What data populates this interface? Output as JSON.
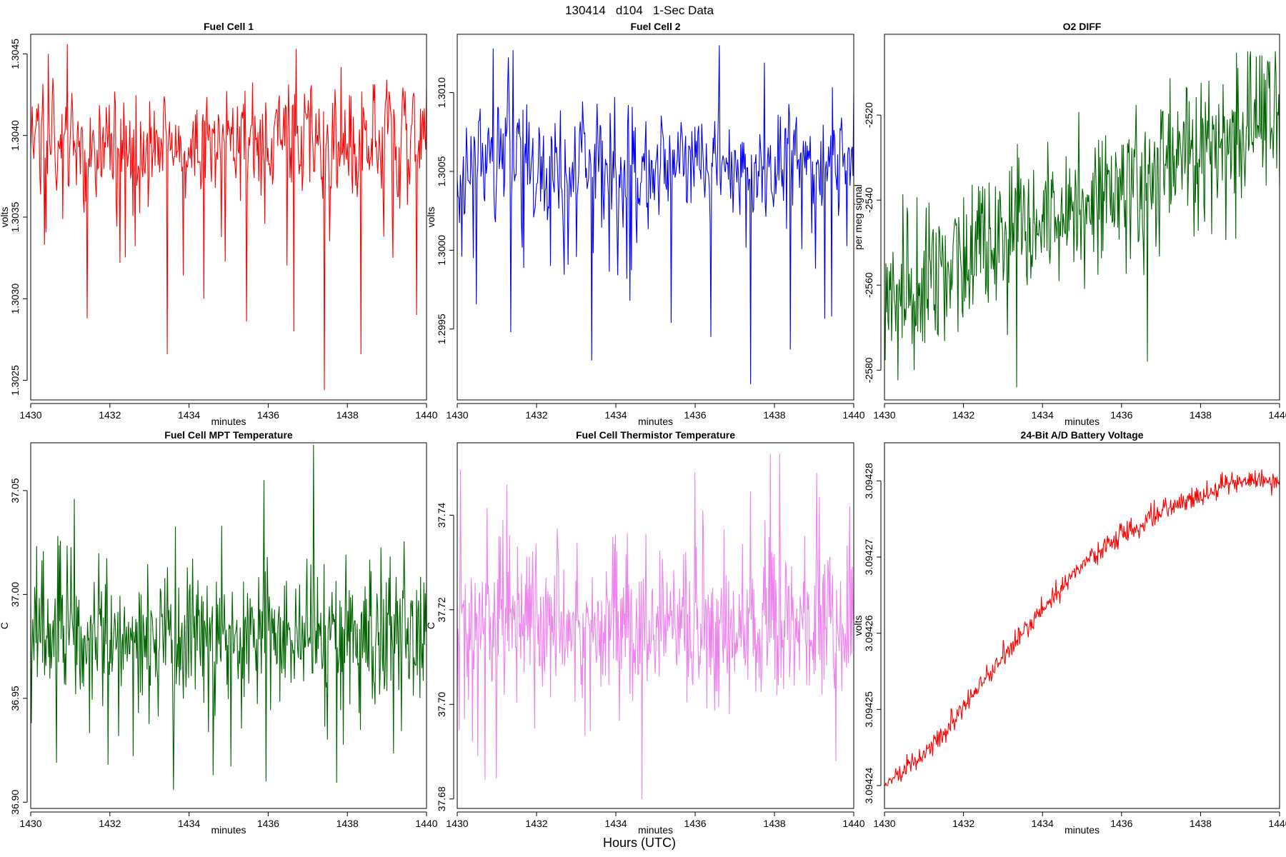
{
  "figure": {
    "title": "130414   d104   1-Sec Data",
    "outer_xlabel": "Hours (UTC)"
  },
  "chart_data": [
    {
      "id": "fc1",
      "type": "line",
      "title": "Fuel Cell 1",
      "xlabel": "minutes",
      "ylabel": "volts",
      "color": "#ff0000",
      "xlim": [
        1430,
        1440
      ],
      "ylim": [
        1.30238,
        1.30462
      ],
      "xticks": [
        "1430",
        "1432",
        "1434",
        "1436",
        "1438",
        "1440"
      ],
      "yticks": [
        "1.3025",
        "1.3030",
        "1.3035",
        "1.3040",
        "1.3045"
      ],
      "ytick_values": [
        1.3025,
        1.303,
        1.3035,
        1.304,
        1.3045
      ],
      "series": [
        {
          "name": "Fuel Cell 1",
          "summary": {
            "start": 1.30392,
            "end": 1.3043,
            "mean": 1.30395,
            "sd": 0.00018,
            "min": 1.30244,
            "max": 1.30456
          },
          "spikes": [
            {
              "x": 1430.35,
              "y": 1.30333
            },
            {
              "x": 1430.45,
              "y": 1.3045
            },
            {
              "x": 1430.92,
              "y": 1.30456
            },
            {
              "x": 1431.42,
              "y": 1.30288
            },
            {
              "x": 1432.25,
              "y": 1.30322
            },
            {
              "x": 1433.45,
              "y": 1.30266
            },
            {
              "x": 1434.38,
              "y": 1.303
            },
            {
              "x": 1435.45,
              "y": 1.30286
            },
            {
              "x": 1436.65,
              "y": 1.3028
            },
            {
              "x": 1436.7,
              "y": 1.30453
            },
            {
              "x": 1437.42,
              "y": 1.30244
            },
            {
              "x": 1437.85,
              "y": 1.30442
            },
            {
              "x": 1438.35,
              "y": 1.30266
            },
            {
              "x": 1439.75,
              "y": 1.3029
            },
            {
              "x": 1440.0,
              "y": 1.3043
            }
          ]
        }
      ]
    },
    {
      "id": "fc2",
      "type": "line",
      "title": "Fuel Cell 2",
      "xlabel": "minutes",
      "ylabel": "volts",
      "color": "#0000ff",
      "xlim": [
        1430,
        1440
      ],
      "ylim": [
        1.29905,
        1.30137
      ],
      "xticks": [
        "1430",
        "1432",
        "1434",
        "1436",
        "1438",
        "1440"
      ],
      "yticks": [
        "1.2995",
        "1.3000",
        "1.3005",
        "1.3010"
      ],
      "ytick_values": [
        1.2995,
        1.3,
        1.3005,
        1.301
      ],
      "series": [
        {
          "name": "Fuel Cell 2",
          "summary": {
            "start": 1.30045,
            "end": 1.301,
            "mean": 1.30055,
            "sd": 0.00018,
            "min": 1.29915,
            "max": 1.3013
          },
          "spikes": [
            {
              "x": 1430.4,
              "y": 1.29995
            },
            {
              "x": 1430.9,
              "y": 1.30128
            },
            {
              "x": 1431.4,
              "y": 1.30127
            },
            {
              "x": 1431.35,
              "y": 1.29948
            },
            {
              "x": 1432.35,
              "y": 1.2999
            },
            {
              "x": 1433.4,
              "y": 1.2993
            },
            {
              "x": 1434.35,
              "y": 1.29968
            },
            {
              "x": 1435.4,
              "y": 1.29954
            },
            {
              "x": 1436.4,
              "y": 1.29945
            },
            {
              "x": 1436.6,
              "y": 1.3013
            },
            {
              "x": 1437.4,
              "y": 1.29915
            },
            {
              "x": 1437.75,
              "y": 1.30119
            },
            {
              "x": 1438.4,
              "y": 1.29937
            },
            {
              "x": 1439.45,
              "y": 1.29958
            },
            {
              "x": 1440.0,
              "y": 1.301
            }
          ]
        }
      ]
    },
    {
      "id": "o2",
      "type": "line",
      "title": "O2 DIFF",
      "xlabel": "minutes",
      "ylabel": "per meg signal",
      "color": "#006400",
      "xlim": [
        1430,
        1440
      ],
      "ylim": [
        -2587,
        -2501
      ],
      "xticks": [
        "1430",
        "1432",
        "1434",
        "1436",
        "1438",
        "1440"
      ],
      "yticks": [
        "-2580",
        "-2560",
        "-2540",
        "-2520"
      ],
      "ytick_values": [
        -2580,
        -2560,
        -2540,
        -2520
      ],
      "series": [
        {
          "name": "O2 DIFF",
          "summary": {
            "start": -2565,
            "end": -2537,
            "trend_start": -2563,
            "trend_end": -2520,
            "sd": 9,
            "min": -2584,
            "max": -2505
          },
          "spikes": [
            {
              "x": 1433.35,
              "y": -2584
            },
            {
              "x": 1439.2,
              "y": -2505
            },
            {
              "x": 1439.55,
              "y": -2506
            },
            {
              "x": 1436.65,
              "y": -2578
            },
            {
              "x": 1430.75,
              "y": -2580
            }
          ]
        }
      ]
    },
    {
      "id": "mpt",
      "type": "line",
      "title": "Fuel Cell MPT Temperature",
      "xlabel": "minutes",
      "ylabel": "C",
      "color": "#006400",
      "xlim": [
        1430,
        1440
      ],
      "ylim": [
        36.897,
        37.073
      ],
      "xticks": [
        "1430",
        "1432",
        "1434",
        "1436",
        "1438",
        "1440"
      ],
      "yticks": [
        "36.90",
        "36.95",
        "37.00",
        "37.05"
      ],
      "ytick_values": [
        36.9,
        36.95,
        37.0,
        37.05
      ],
      "series": [
        {
          "name": "Fuel Cell MPT Temperature",
          "summary": {
            "start": 36.997,
            "end": 37.005,
            "mean": 36.98,
            "sd": 0.022,
            "min": 36.906,
            "max": 37.072
          },
          "spikes": [
            {
              "x": 1433.6,
              "y": 36.906
            },
            {
              "x": 1437.15,
              "y": 37.072
            },
            {
              "x": 1435.9,
              "y": 37.055
            },
            {
              "x": 1434.6,
              "y": 36.913
            },
            {
              "x": 1435.95,
              "y": 36.91
            },
            {
              "x": 1431.1,
              "y": 37.046
            },
            {
              "x": 1431.95,
              "y": 36.918
            },
            {
              "x": 1430.65,
              "y": 36.919
            }
          ]
        }
      ]
    },
    {
      "id": "therm",
      "type": "line",
      "title": "Fuel Cell Thermistor Temperature",
      "xlabel": "minutes",
      "ylabel": "C",
      "color": "#ee82ee",
      "xlim": [
        1430,
        1440
      ],
      "ylim": [
        37.678,
        37.7553
      ],
      "xticks": [
        "1430",
        "1432",
        "1434",
        "1436",
        "1438",
        "1440"
      ],
      "yticks": [
        "37.68",
        "37.70",
        "37.72",
        "37.74"
      ],
      "ytick_values": [
        37.68,
        37.7,
        37.72,
        37.74
      ],
      "series": [
        {
          "name": "Fuel Cell Thermistor Temperature",
          "summary": {
            "start": 37.701,
            "end": 37.721,
            "mean": 37.716,
            "sd": 0.011,
            "min": 37.68,
            "max": 37.753
          },
          "spikes": [
            {
              "x": 1434.65,
              "y": 37.68
            },
            {
              "x": 1437.9,
              "y": 37.753
            },
            {
              "x": 1430.7,
              "y": 37.684
            },
            {
              "x": 1439.55,
              "y": 37.688
            },
            {
              "x": 1436.0,
              "y": 37.749
            }
          ]
        }
      ]
    },
    {
      "id": "batt",
      "type": "line",
      "title": "24-Bit A/D Battery Voltage",
      "xlabel": "minutes",
      "ylabel": "volts",
      "color": "#ff0000",
      "xlim": [
        1430,
        1440
      ],
      "ylim": [
        3.094237,
        3.094285
      ],
      "xticks": [
        "1430",
        "1432",
        "1434",
        "1436",
        "1438",
        "1440"
      ],
      "yticks": [
        "3.09424",
        "3.09425",
        "3.09426",
        "3.09427",
        "3.09428"
      ],
      "ytick_values": [
        3.09424,
        3.09425,
        3.09426,
        3.09427,
        3.09428
      ],
      "series": [
        {
          "name": "24-Bit A/D Battery Voltage",
          "summary": {
            "start": 3.09424,
            "end": 3.09428,
            "min": 3.09424,
            "max": 3.094283
          },
          "trend_points": [
            {
              "x": 1430.0,
              "y": 3.09424
            },
            {
              "x": 1431.0,
              "y": 3.094244
            },
            {
              "x": 1432.0,
              "y": 3.09425
            },
            {
              "x": 1433.0,
              "y": 3.094257
            },
            {
              "x": 1434.0,
              "y": 3.094263
            },
            {
              "x": 1435.0,
              "y": 3.094269
            },
            {
              "x": 1436.0,
              "y": 3.094273
            },
            {
              "x": 1437.0,
              "y": 3.094276
            },
            {
              "x": 1438.0,
              "y": 3.094278
            },
            {
              "x": 1439.0,
              "y": 3.09428
            },
            {
              "x": 1440.0,
              "y": 3.09428
            }
          ]
        }
      ]
    }
  ]
}
